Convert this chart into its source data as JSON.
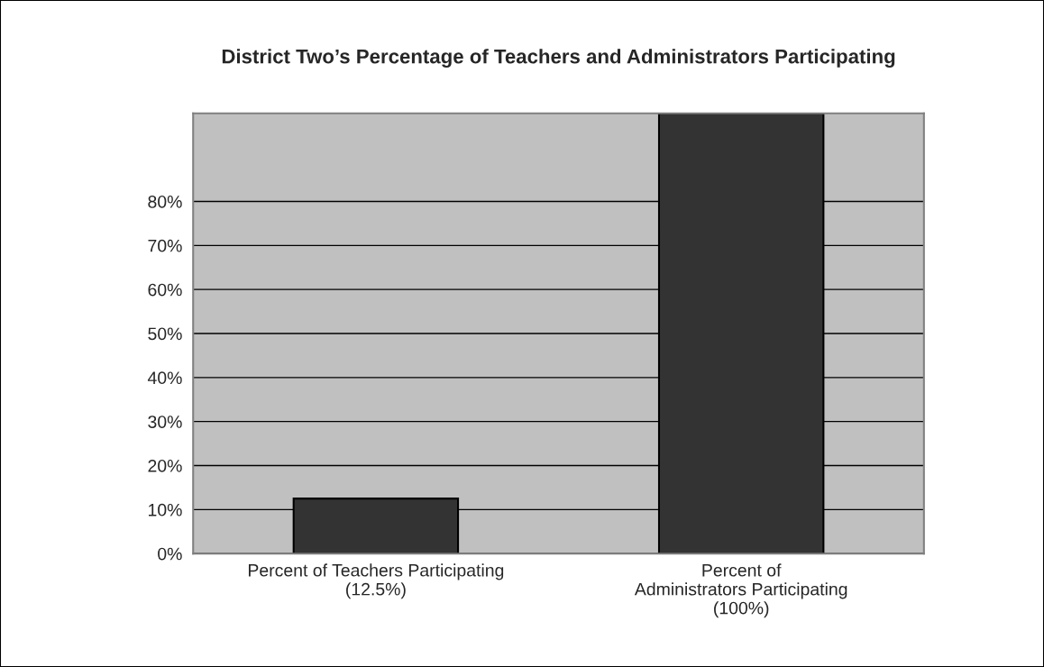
{
  "chart_data": {
    "type": "bar",
    "title": "District Two’s Percentage of Teachers and Administrators Participating",
    "categories": [
      "Percent of Teachers Participating\n(12.5%)",
      "Percent of\nAdministrators Participating\n(100%)"
    ],
    "values": [
      12.5,
      100
    ],
    "color": "#333333",
    "ylim": [
      0,
      100
    ],
    "yticks": [
      {
        "value": 0,
        "label": "0%"
      },
      {
        "value": 10,
        "label": "10%"
      },
      {
        "value": 20,
        "label": "20%"
      },
      {
        "value": 30,
        "label": "30%"
      },
      {
        "value": 40,
        "label": "40%"
      },
      {
        "value": 50,
        "label": "50%"
      },
      {
        "value": 60,
        "label": "60%"
      },
      {
        "value": 70,
        "label": "70%"
      },
      {
        "value": 80,
        "label": "80%"
      }
    ],
    "grid": "y"
  }
}
